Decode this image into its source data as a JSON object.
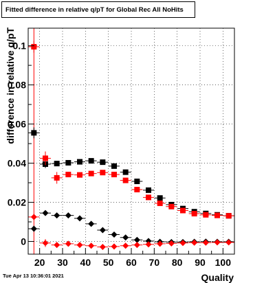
{
  "title": "Fitted difference in relative q/pT for Global Rec All NoHits",
  "footer_timestamp": "Tue Apr 13 10:36:01 2021",
  "chart_data": {
    "type": "scatter",
    "xlabel": "Quality",
    "ylabel": "difference in relative q/pT",
    "xlim": [
      15.0,
      105.0
    ],
    "ylim": [
      -0.0065,
      0.109
    ],
    "xticks": [
      20,
      25,
      30,
      35,
      40,
      45,
      50,
      55,
      60,
      65,
      70,
      75,
      80,
      85,
      90,
      95,
      100
    ],
    "xtick_labels": [
      "20",
      "30",
      "40",
      "50",
      "60",
      "70",
      "80",
      "90",
      "100"
    ],
    "xtick_label_values": [
      20,
      30,
      40,
      50,
      60,
      70,
      80,
      90,
      100
    ],
    "yticks": [
      0,
      0.02,
      0.04,
      0.06,
      0.08,
      0.1
    ],
    "ytick_labels": [
      "0",
      "0.02",
      "0.04",
      "0.06",
      "0.08",
      "0.1"
    ],
    "grid": true,
    "vertical_line_x": 17.5,
    "series": [
      {
        "marker": "square",
        "color": "#000000",
        "x": [
          17.5,
          22.5,
          27.5,
          32.5,
          37.5,
          42.5,
          47.5,
          52.5,
          57.5,
          62.5,
          67.5,
          72.5,
          77.5,
          82.5,
          87.5,
          92.5,
          97.5,
          102.5
        ],
        "y": [
          0.0555,
          0.0395,
          0.0398,
          0.0402,
          0.0407,
          0.0412,
          0.0405,
          0.0385,
          0.0354,
          0.0307,
          0.0262,
          0.0222,
          0.0188,
          0.0168,
          0.0152,
          0.0143,
          0.0136,
          0.0131
        ],
        "yerr": [
          0.0028,
          0.002,
          0.0008,
          0.0006,
          0.0005,
          0.0005,
          0.0005,
          0.0005,
          0.0005,
          0.0005,
          0.0005,
          0.0005,
          0.0005,
          0.0005,
          0.0005,
          0.0005,
          0.0005,
          0.0005
        ]
      },
      {
        "marker": "square",
        "color": "#ff0000",
        "x": [
          17.5,
          22.5,
          27.5,
          32.5,
          37.5,
          42.5,
          47.5,
          52.5,
          57.5,
          62.5,
          67.5,
          72.5,
          77.5,
          82.5,
          87.5,
          92.5,
          97.5,
          102.5
        ],
        "y": [
          0.0995,
          0.0425,
          0.0325,
          0.0342,
          0.034,
          0.0347,
          0.0352,
          0.0342,
          0.0312,
          0.0265,
          0.0225,
          0.0195,
          0.0178,
          0.0158,
          0.0142,
          0.0136,
          0.0133,
          0.0131
        ],
        "yerr": [
          0.003,
          0.0035,
          0.003,
          0.0012,
          0.0008,
          0.0006,
          0.0006,
          0.0006,
          0.0006,
          0.0006,
          0.0006,
          0.0006,
          0.0006,
          0.0006,
          0.0006,
          0.0006,
          0.0006,
          0.0006
        ]
      },
      {
        "marker": "diamond",
        "color": "#000000",
        "x": [
          17.5,
          22.5,
          27.5,
          32.5,
          37.5,
          42.5,
          47.5,
          52.5,
          57.5,
          62.5,
          67.5,
          72.5,
          77.5,
          82.5,
          87.5,
          92.5,
          97.5,
          102.5
        ],
        "y": [
          0.0065,
          0.0145,
          0.0133,
          0.0133,
          0.0118,
          0.009,
          0.0058,
          0.0035,
          0.002,
          0.0008,
          0.0002,
          -0.0002,
          -0.0003,
          -0.0003,
          -0.0002,
          -0.0001,
          -0.0002,
          -0.0002
        ],
        "yerr": [
          0.0015,
          0.0012,
          0.0008,
          0.0005,
          0.0004,
          0.0004,
          0.0004,
          0.0004,
          0.0003,
          0.0003,
          0.0003,
          0.0003,
          0.0003,
          0.0003,
          0.0003,
          0.0003,
          0.0003,
          0.0003
        ]
      },
      {
        "marker": "diamond",
        "color": "#ff0000",
        "x": [
          17.5,
          22.5,
          27.5,
          32.5,
          37.5,
          42.5,
          47.5,
          52.5,
          57.5,
          62.5,
          67.5,
          72.5,
          77.5,
          82.5,
          87.5,
          92.5,
          97.5,
          102.5
        ],
        "y": [
          0.0125,
          -0.0008,
          -0.0018,
          -0.0012,
          -0.0018,
          -0.0022,
          -0.0028,
          -0.0026,
          -0.0022,
          -0.0018,
          -0.0015,
          -0.0012,
          -0.001,
          -0.0008,
          -0.0006,
          -0.0006,
          -0.0005,
          -0.0005
        ],
        "yerr": [
          0.0015,
          0.002,
          0.001,
          0.0005,
          0.0004,
          0.0004,
          0.0004,
          0.0004,
          0.0004,
          0.0003,
          0.0003,
          0.0003,
          0.0003,
          0.0003,
          0.0003,
          0.0003,
          0.0003,
          0.0003
        ]
      }
    ]
  }
}
